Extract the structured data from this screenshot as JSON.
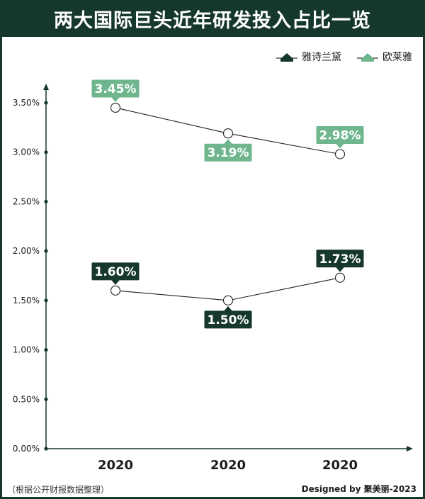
{
  "title": "两大国际巨头近年研发投入占比一览",
  "footer_note": "（根据公开财报数据整理）",
  "credit": "Designed by 聚美丽-2023",
  "colors": {
    "dark_green": "#16382a",
    "light_green": "#6fb68f"
  },
  "chart_data": {
    "type": "line",
    "title": "两大国际巨头近年研发投入占比一览",
    "x": [
      "2020",
      "2020",
      "2020"
    ],
    "y_ticks": [
      "0.00%",
      "0.50%",
      "1.00%",
      "1.50%",
      "2.00%",
      "2.50%",
      "3.00%",
      "3.50%"
    ],
    "ylim": [
      0,
      3.5
    ],
    "grid": false,
    "legend_position": "top-right",
    "series": [
      {
        "name": "雅诗兰黛",
        "values": [
          1.6,
          1.5,
          1.73
        ],
        "labels": [
          "1.60%",
          "1.50%",
          "1.73%"
        ],
        "label_position": [
          "above",
          "below",
          "above"
        ],
        "color": "#16382a"
      },
      {
        "name": "欧莱雅",
        "values": [
          3.45,
          3.19,
          2.98
        ],
        "labels": [
          "3.45%",
          "3.19%",
          "2.98%"
        ],
        "label_position": [
          "above",
          "below",
          "above"
        ],
        "color": "#6fb68f"
      }
    ]
  }
}
